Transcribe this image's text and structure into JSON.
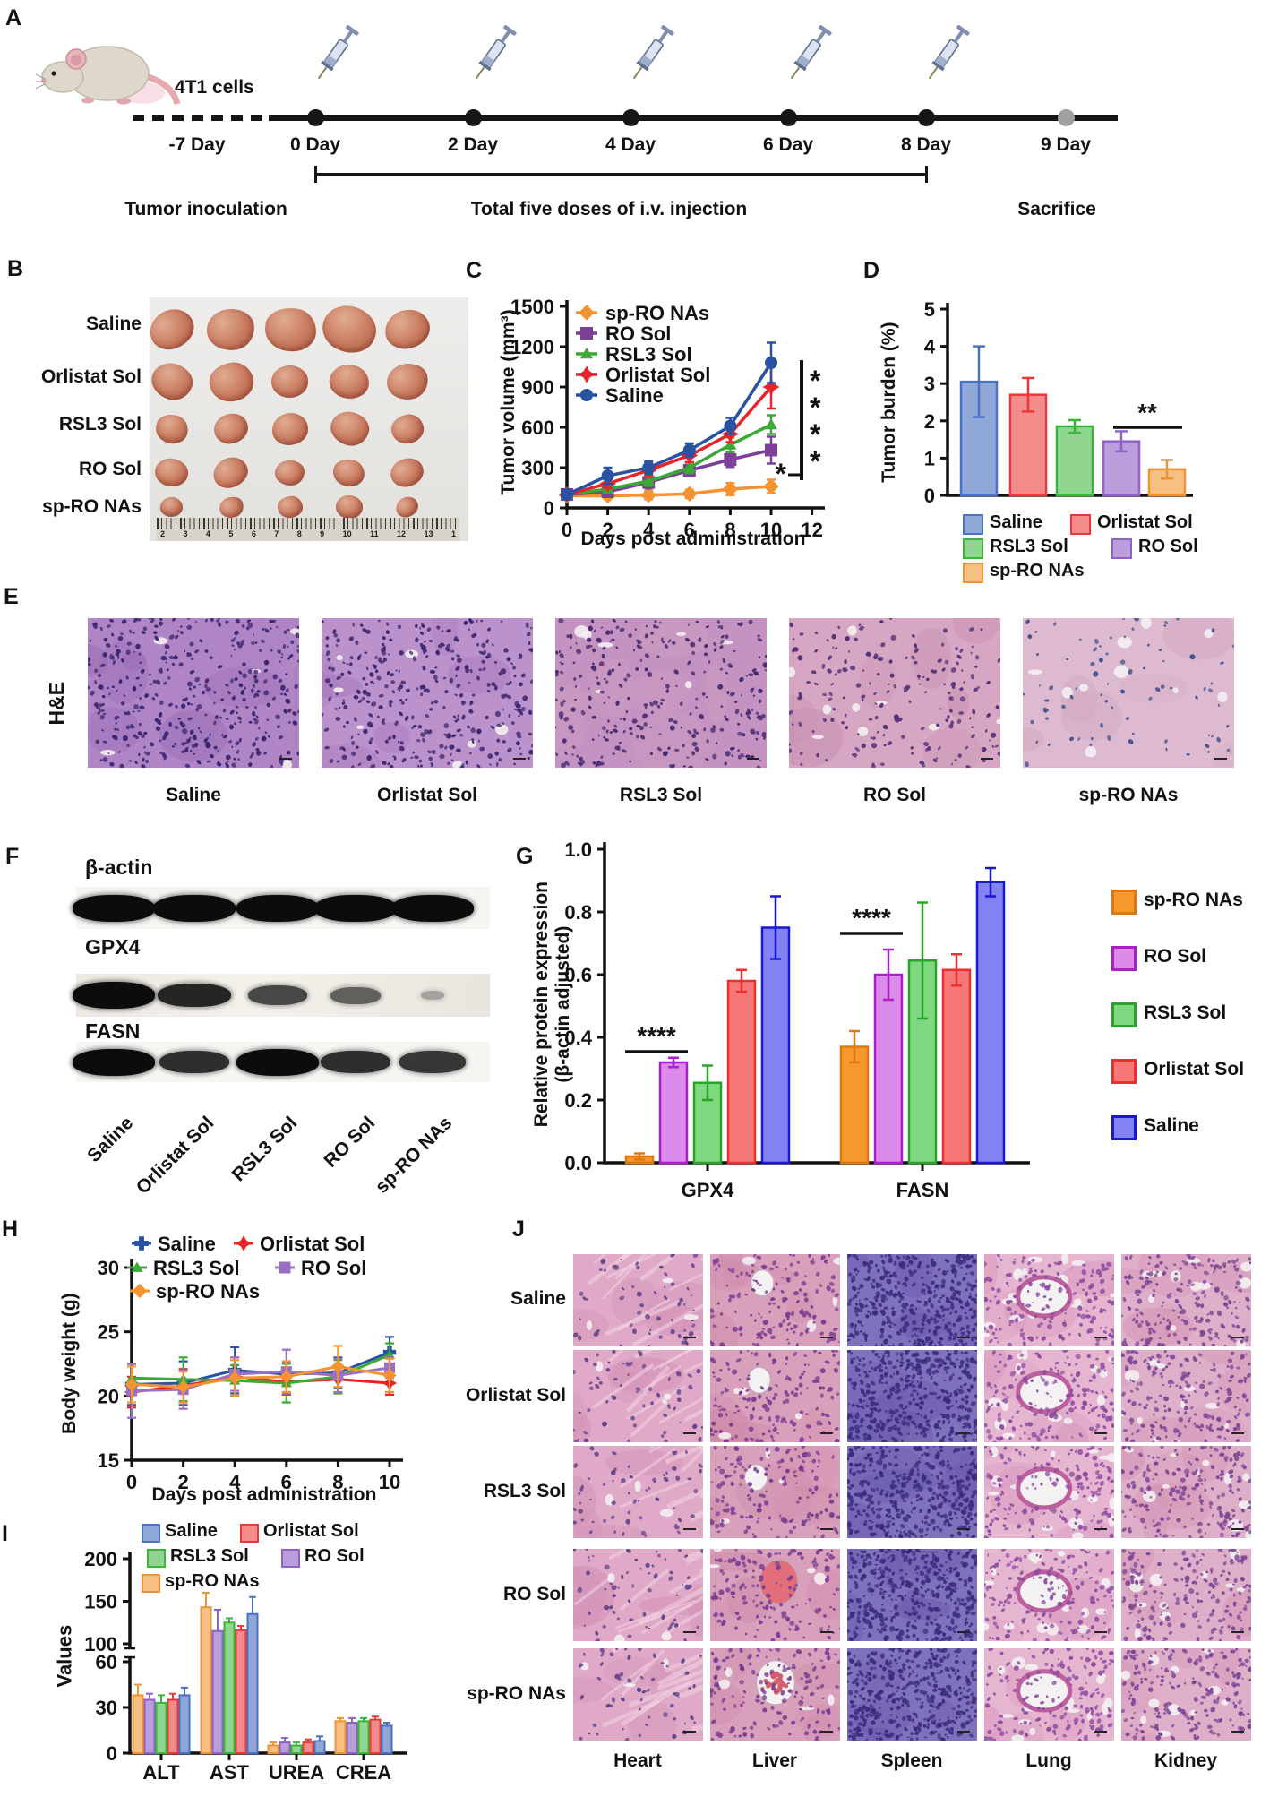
{
  "panelA": {
    "label": "A",
    "cells_label": "4T1 cells",
    "day_labels": [
      "-7 Day",
      "0 Day",
      "2 Day",
      "4 Day",
      "6 Day",
      "8 Day",
      "9 Day"
    ],
    "caption_inoculation": "Tumor inoculation",
    "caption_doses": "Total five doses of i.v. injection",
    "caption_sacrifice": "Sacrifice"
  },
  "panelB": {
    "label": "B",
    "groups": [
      "Saline",
      "Orlistat Sol",
      "RSL3 Sol",
      "RO Sol",
      "sp-RO NAs"
    ],
    "ruler_numbers": [
      "2",
      "3",
      "4",
      "5",
      "6",
      "7",
      "8",
      "9",
      "10",
      "11",
      "12",
      "13",
      "1"
    ]
  },
  "panel_labels": {
    "C": "C",
    "D": "D",
    "G": "G",
    "H": "H",
    "I": "I"
  },
  "panelE": {
    "label": "E",
    "row_label": "H&E",
    "groups": [
      "Saline",
      "Orlistat Sol",
      "RSL3 Sol",
      "RO Sol",
      "sp-RO NAs"
    ]
  },
  "panelF": {
    "label": "F",
    "lanes": [
      "Saline",
      "Orlistat Sol",
      "RSL3 Sol",
      "RO Sol",
      "sp-RO NAs"
    ],
    "blots": [
      {
        "protein": "β-actin",
        "band_intensity": [
          1,
          1,
          1,
          1,
          1
        ]
      },
      {
        "protein": "GPX4",
        "band_intensity": [
          1,
          0.85,
          0.65,
          0.5,
          0.08
        ]
      },
      {
        "protein": "FASN",
        "band_intensity": [
          1,
          0.8,
          1,
          0.8,
          0.75
        ]
      }
    ]
  },
  "panelJ": {
    "label": "J",
    "rows": [
      "Saline",
      "Orlistat Sol",
      "RSL3 Sol",
      "RO Sol",
      "sp-RO NAs"
    ],
    "organs": [
      "Heart",
      "Liver",
      "Spleen",
      "Lung",
      "Kidney"
    ]
  },
  "chart_data": [
    {
      "id": "tumor_volume",
      "panel": "C",
      "type": "line",
      "ylabel": "Tumor volume (mm³)",
      "xlabel": "Days post administration",
      "x": [
        0,
        2,
        4,
        6,
        8,
        10
      ],
      "xticks": [
        0,
        2,
        4,
        6,
        8,
        10,
        12
      ],
      "yticks": [
        0,
        300,
        600,
        900,
        1200,
        1500
      ],
      "ylim": [
        0,
        1500
      ],
      "series": [
        {
          "name": "sp-RO NAs",
          "color": "#F59331",
          "marker": "diamond",
          "values": [
            90,
            90,
            95,
            105,
            140,
            160
          ],
          "err": [
            25,
            25,
            30,
            30,
            45,
            50
          ]
        },
        {
          "name": "RO Sol",
          "color": "#7D3F98",
          "marker": "square",
          "values": [
            100,
            120,
            190,
            280,
            360,
            430
          ],
          "err": [
            15,
            35,
            45,
            40,
            55,
            100
          ]
        },
        {
          "name": "RSL3 Sol",
          "color": "#3BAA35",
          "marker": "triangle",
          "values": [
            100,
            140,
            200,
            300,
            470,
            620
          ],
          "err": [
            15,
            30,
            35,
            40,
            55,
            70
          ]
        },
        {
          "name": "Orlistat Sol",
          "color": "#E8232A",
          "marker": "star",
          "values": [
            100,
            180,
            280,
            390,
            550,
            900
          ],
          "err": [
            15,
            35,
            40,
            50,
            60,
            160
          ]
        },
        {
          "name": "Saline",
          "color": "#2A52A2",
          "marker": "circle",
          "values": [
            100,
            240,
            300,
            430,
            610,
            1080
          ],
          "err": [
            15,
            60,
            45,
            50,
            60,
            150
          ]
        }
      ],
      "significance": {
        "bracket_stars": "****",
        "extra_star": "*"
      }
    },
    {
      "id": "tumor_burden",
      "panel": "D",
      "type": "bar",
      "ylabel": "Tumor burden (%)",
      "yticks": [
        0,
        1,
        2,
        3,
        4,
        5
      ],
      "ylim": [
        0,
        5
      ],
      "categories": [
        "Saline",
        "Orlistat Sol",
        "RSL3 Sol",
        "RO Sol",
        "sp-RO NAs"
      ],
      "values": [
        3.05,
        2.7,
        1.85,
        1.45,
        0.7
      ],
      "errors": [
        0.95,
        0.45,
        0.17,
        0.27,
        0.25
      ],
      "colors": [
        [
          "#8FA8D8",
          "#4A72C4"
        ],
        [
          "#F48A8A",
          "#E93A3A"
        ],
        [
          "#90D690",
          "#3AB53A"
        ],
        [
          "#BA9DDB",
          "#9062C4"
        ],
        [
          "#F6C083",
          "#EE9434"
        ]
      ],
      "significance": {
        "stars": "**",
        "between": [
          "RO Sol",
          "sp-RO NAs"
        ]
      },
      "legend": [
        "Saline",
        "Orlistat Sol",
        "RSL3 Sol",
        "RO Sol",
        "sp-RO NAs"
      ]
    },
    {
      "id": "protein_expression",
      "panel": "G",
      "type": "grouped-bar",
      "ylabel_line1": "Relative protein expression",
      "ylabel_line2": "(β-actin adjusted)",
      "yticks": [
        "0.0",
        "0.2",
        "0.4",
        "0.6",
        "0.8",
        "1.0"
      ],
      "ylim": [
        0,
        1
      ],
      "groups": [
        "GPX4",
        "FASN"
      ],
      "series": [
        {
          "name": "sp-RO NAs",
          "fill": "#F5992E",
          "stroke": "#E07812",
          "values": [
            0.02,
            0.37
          ],
          "errors": [
            0.01,
            0.05
          ]
        },
        {
          "name": "RO Sol",
          "fill": "#DC8BE8",
          "stroke": "#AA1FC8",
          "values": [
            0.32,
            0.6
          ],
          "errors": [
            0.015,
            0.08
          ]
        },
        {
          "name": "RSL3 Sol",
          "fill": "#7FD87F",
          "stroke": "#28A428",
          "values": [
            0.255,
            0.645
          ],
          "errors": [
            0.055,
            0.185
          ]
        },
        {
          "name": "Orlistat Sol",
          "fill": "#F87878",
          "stroke": "#E83030",
          "values": [
            0.58,
            0.615
          ],
          "errors": [
            0.035,
            0.05
          ]
        },
        {
          "name": "Saline",
          "fill": "#8282F2",
          "stroke": "#1818D0",
          "values": [
            0.75,
            0.895
          ],
          "errors": [
            0.1,
            0.045
          ]
        }
      ],
      "significance": [
        {
          "group": "GPX4",
          "stars": "****"
        },
        {
          "group": "FASN",
          "stars": "****"
        }
      ]
    },
    {
      "id": "body_weight",
      "panel": "H",
      "type": "line",
      "ylabel": "Body weight (g)",
      "xlabel": "Days post administration",
      "x": [
        0,
        2,
        4,
        6,
        8,
        10
      ],
      "xticks": [
        0,
        2,
        4,
        6,
        8,
        10
      ],
      "yticks": [
        15,
        20,
        25,
        30
      ],
      "ylim": [
        15,
        30
      ],
      "series": [
        {
          "name": "Saline",
          "color": "#2A52A2",
          "marker": "plus",
          "values": [
            20.9,
            21.0,
            22.0,
            21.7,
            21.8,
            23.4
          ],
          "err": [
            1.6,
            1.7,
            1.8,
            0.9,
            1.2,
            1.2
          ]
        },
        {
          "name": "Orlistat Sol",
          "color": "#E8232A",
          "marker": "star",
          "values": [
            20.3,
            20.8,
            21.5,
            21.1,
            21.3,
            21.0
          ],
          "err": [
            1.2,
            1.3,
            1.5,
            1.0,
            1.1,
            0.9
          ]
        },
        {
          "name": "RSL3 Sol",
          "color": "#3BAA35",
          "marker": "triangle",
          "values": [
            21.4,
            21.3,
            21.2,
            21.0,
            21.5,
            23.2
          ],
          "err": [
            1.1,
            1.7,
            1.2,
            1.5,
            1.3,
            0.9
          ]
        },
        {
          "name": "RO Sol",
          "color": "#9B6FC3",
          "marker": "square",
          "values": [
            20.4,
            20.5,
            21.7,
            21.9,
            21.6,
            22.2
          ],
          "err": [
            2.1,
            1.5,
            1.3,
            1.7,
            1.3,
            0.8
          ]
        },
        {
          "name": "sp-RO NAs",
          "color": "#F59331",
          "marker": "diamond",
          "values": [
            20.9,
            20.7,
            21.4,
            21.5,
            22.3,
            21.6
          ],
          "err": [
            1.4,
            1.2,
            1.4,
            1.2,
            1.6,
            1.3
          ]
        }
      ],
      "legend_order": [
        "Saline",
        "Orlistat Sol",
        "RSL3 Sol",
        "RO Sol",
        "sp-RO NAs"
      ]
    },
    {
      "id": "blood_values",
      "panel": "I",
      "type": "grouped-bar-broken-axis",
      "ylabel": "Values",
      "yticks_lower": [
        0,
        30,
        60
      ],
      "yticks_upper": [
        100,
        150,
        200
      ],
      "categories": [
        "ALT",
        "AST",
        "UREA",
        "CREA"
      ],
      "series": [
        {
          "name": "sp-RO NAs",
          "fill": "#F6C083",
          "stroke": "#EE9434",
          "values": [
            38,
            143,
            5,
            21
          ],
          "errors": [
            7,
            17,
            2,
            2
          ]
        },
        {
          "name": "RO Sol",
          "fill": "#BA9DDB",
          "stroke": "#9062C4",
          "values": [
            35,
            115,
            7,
            20
          ],
          "errors": [
            4,
            25,
            3,
            3
          ]
        },
        {
          "name": "RSL3 Sol",
          "fill": "#90D690",
          "stroke": "#3AB53A",
          "values": [
            33,
            125,
            5,
            21
          ],
          "errors": [
            5,
            5,
            2,
            2
          ]
        },
        {
          "name": "Orlistat Sol",
          "fill": "#F48A8A",
          "stroke": "#E93A3A",
          "values": [
            35,
            116,
            7,
            22
          ],
          "errors": [
            4,
            5,
            2,
            2
          ]
        },
        {
          "name": "Saline",
          "fill": "#8FA8D8",
          "stroke": "#4A72C4",
          "values": [
            38,
            135,
            8,
            18
          ],
          "errors": [
            5,
            20,
            3,
            2
          ]
        }
      ],
      "legend_order": [
        "Saline",
        "Orlistat Sol",
        "RSL3 Sol",
        "RO Sol",
        "sp-RO NAs"
      ]
    }
  ]
}
